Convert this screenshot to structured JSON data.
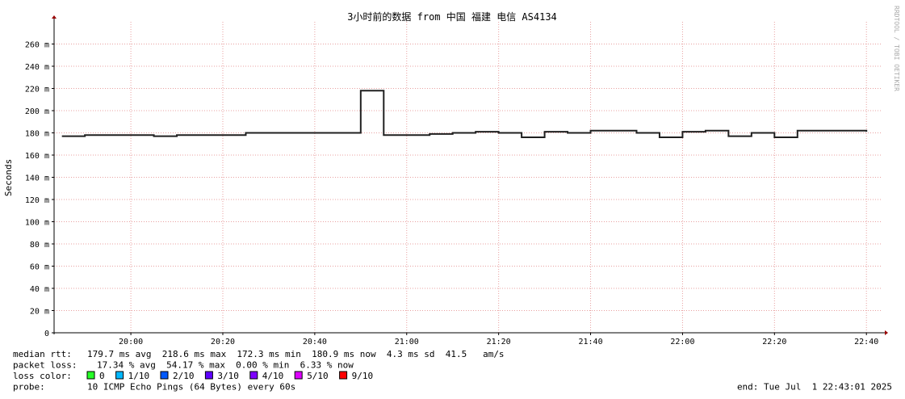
{
  "chart_data": {
    "type": "line",
    "title": "3小时前的数据 from 中国 福建 电信 AS4134",
    "y_label": "Seconds",
    "watermark": "RRDTOOL / TOBI OETIKER",
    "x": [
      1185,
      1190,
      1195,
      1200,
      1205,
      1210,
      1215,
      1220,
      1225,
      1230,
      1235,
      1240,
      1245,
      1250,
      1255,
      1260,
      1265,
      1270,
      1275,
      1280,
      1285,
      1290,
      1295,
      1300,
      1305,
      1310,
      1315,
      1320,
      1325,
      1330,
      1335,
      1340,
      1345,
      1350,
      1355,
      1360
    ],
    "series": [
      {
        "name": "median rtt",
        "color": "#202020",
        "values": [
          177,
          178,
          178,
          178,
          177,
          178,
          178,
          178,
          180,
          180,
          180,
          180,
          180,
          218,
          178,
          178,
          179,
          180,
          181,
          180,
          176,
          181,
          180,
          182,
          182,
          180,
          176,
          181,
          182,
          177,
          180,
          176,
          182,
          182,
          182,
          181
        ]
      }
    ],
    "xlim": [
      1183.3,
      1363.3
    ],
    "xticks": [
      {
        "value": 1200,
        "label": "20:00"
      },
      {
        "value": 1220,
        "label": "20:20"
      },
      {
        "value": 1240,
        "label": "20:40"
      },
      {
        "value": 1260,
        "label": "21:00"
      },
      {
        "value": 1280,
        "label": "21:20"
      },
      {
        "value": 1300,
        "label": "21:40"
      },
      {
        "value": 1320,
        "label": "22:00"
      },
      {
        "value": 1340,
        "label": "22:20"
      },
      {
        "value": 1360,
        "label": "22:40"
      }
    ],
    "ylim": [
      0,
      280
    ],
    "yticks": [
      0,
      {
        "value": 20,
        "label": "20 m"
      },
      {
        "value": 40,
        "label": "40 m"
      },
      {
        "value": 60,
        "label": "60 m"
      },
      {
        "value": 80,
        "label": "80 m"
      },
      {
        "value": 100,
        "label": "100 m"
      },
      {
        "value": 120,
        "label": "120 m"
      },
      {
        "value": 140,
        "label": "140 m"
      },
      {
        "value": 160,
        "label": "160 m"
      },
      {
        "value": 180,
        "label": "180 m"
      },
      {
        "value": 200,
        "label": "200 m"
      },
      {
        "value": 220,
        "label": "220 m"
      },
      {
        "value": 240,
        "label": "240 m"
      },
      {
        "value": 260,
        "label": "260 m"
      }
    ],
    "grid": true,
    "stats": [
      {
        "label": "median rtt:",
        "text": "179.7 ms avg  218.6 ms max  172.3 ms min  180.9 ms now  4.3 ms sd  41.5   am/s"
      },
      {
        "label": "packet loss:",
        "text": "17.34 % avg  54.17 % max  0.00 % min  6.33 % now"
      }
    ],
    "loss_legend_label": "loss color:",
    "loss_legend": [
      {
        "name": "0",
        "color": "#26ff26"
      },
      {
        "name": "1/10",
        "color": "#00b8ff"
      },
      {
        "name": "2/10",
        "color": "#0059ff"
      },
      {
        "name": "3/10",
        "color": "#5e00ff"
      },
      {
        "name": "4/10",
        "color": "#7e00ff"
      },
      {
        "name": "5/10",
        "color": "#dd00ff"
      },
      {
        "name": "9/10",
        "color": "#ff0000"
      }
    ],
    "probe_label": "probe:",
    "probe": "10 ICMP Echo Pings (64 Bytes) every 60s",
    "end": "end: Tue Jul  1 22:43:01 2025"
  }
}
